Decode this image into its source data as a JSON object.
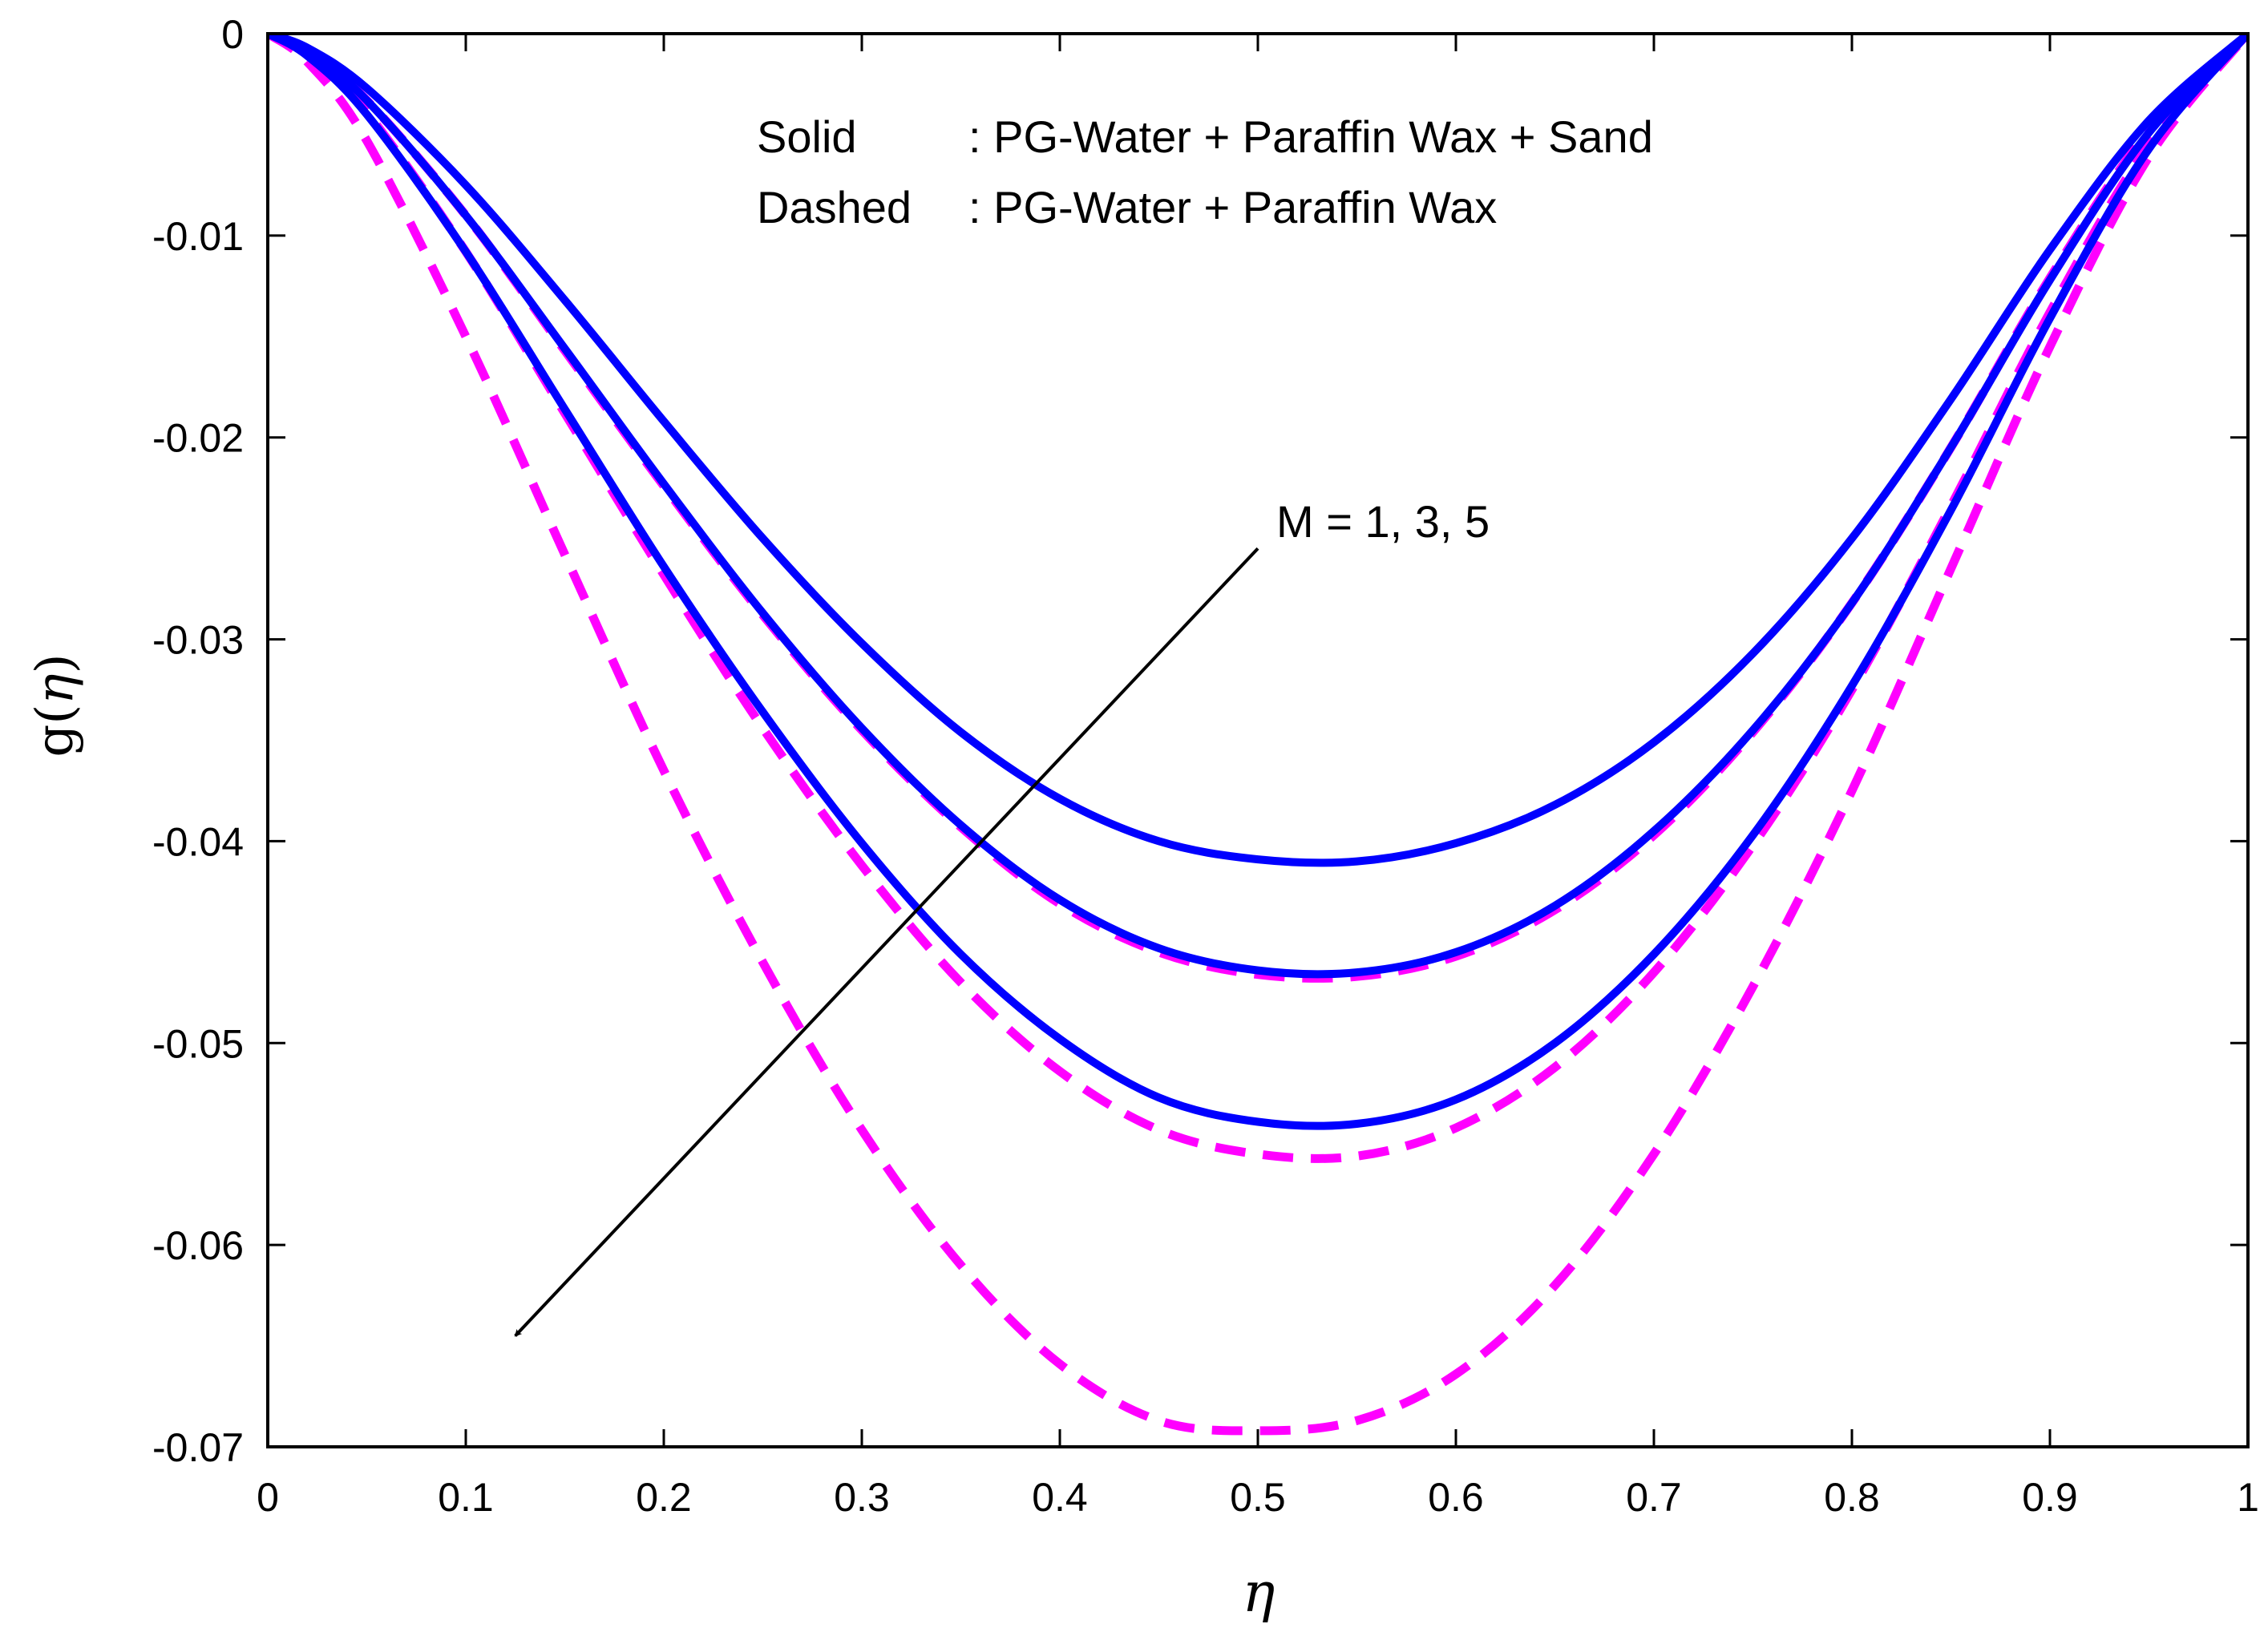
{
  "chart_data": {
    "type": "line",
    "title": "",
    "xlabel": "η",
    "ylabel_prefix": "g(",
    "ylabel_var": "η",
    "ylabel_suffix": ")",
    "xlim": [
      0,
      1
    ],
    "ylim": [
      -0.07,
      0
    ],
    "x_ticks": [
      0,
      0.1,
      0.2,
      0.3,
      0.4,
      0.5,
      0.6,
      0.7,
      0.8,
      0.9,
      1
    ],
    "x_tick_labels": [
      "0",
      "0.1",
      "0.2",
      "0.3",
      "0.4",
      "0.5",
      "0.6",
      "0.7",
      "0.8",
      "0.9",
      "1"
    ],
    "y_ticks": [
      0,
      -0.01,
      -0.02,
      -0.03,
      -0.04,
      -0.05,
      -0.06,
      -0.07
    ],
    "y_tick_labels": [
      "0",
      "-0.01",
      "-0.02",
      "-0.03",
      "-0.04",
      "-0.05",
      "-0.06",
      "-0.07"
    ],
    "grid": false,
    "legend_text": {
      "line1_key": "Solid",
      "line1_value": ": PG-Water + Paraffin Wax + Sand",
      "line2_key": "Dashed",
      "line2_value": ": PG-Water + Paraffin Wax"
    },
    "annotation": {
      "text": "M = 1, 3, 5",
      "arrow_start": [
        0.5,
        -0.0255
      ],
      "arrow_end": [
        0.125,
        -0.0645
      ]
    },
    "colors": {
      "solid": "#0000ff",
      "dashed": "#ff00ff",
      "axis": "#000000"
    },
    "series": [
      {
        "name": "Solid, M = 1",
        "style": "solid",
        "color": "#0000ff",
        "min": -0.041,
        "xmin": 0.55,
        "x": [
          0,
          0.02,
          0.05,
          0.1,
          0.15,
          0.2,
          0.25,
          0.3,
          0.35,
          0.4,
          0.45,
          0.5,
          0.55,
          0.6,
          0.65,
          0.7,
          0.75,
          0.8,
          0.85,
          0.9,
          0.95,
          1
        ],
        "values": [
          0,
          -0.0007,
          -0.0027,
          -0.0075,
          -0.0132,
          -0.0192,
          -0.025,
          -0.0302,
          -0.0346,
          -0.0379,
          -0.04,
          -0.0409,
          -0.041,
          -0.0401,
          -0.0382,
          -0.0351,
          -0.0307,
          -0.025,
          -0.0181,
          -0.0107,
          -0.0043,
          0
        ]
      },
      {
        "name": "Solid, M = 3",
        "style": "solid",
        "color": "#0000ff",
        "min": -0.0465,
        "xmin": 0.545,
        "x": [
          0,
          0.02,
          0.05,
          0.1,
          0.15,
          0.2,
          0.25,
          0.3,
          0.35,
          0.4,
          0.45,
          0.5,
          0.55,
          0.6,
          0.65,
          0.7,
          0.75,
          0.8,
          0.85,
          0.9,
          0.95,
          1
        ],
        "values": [
          0,
          -0.0009,
          -0.0033,
          -0.009,
          -0.0156,
          -0.0223,
          -0.0287,
          -0.0344,
          -0.0392,
          -0.0429,
          -0.0453,
          -0.0464,
          -0.0465,
          -0.0455,
          -0.0432,
          -0.0395,
          -0.0345,
          -0.0282,
          -0.0205,
          -0.0122,
          -0.0049,
          0
        ]
      },
      {
        "name": "Solid, M = 5",
        "style": "solid",
        "color": "#0000ff",
        "min": -0.054,
        "xmin": 0.54,
        "x": [
          0,
          0.02,
          0.05,
          0.1,
          0.15,
          0.2,
          0.25,
          0.3,
          0.35,
          0.4,
          0.45,
          0.5,
          0.55,
          0.6,
          0.65,
          0.7,
          0.75,
          0.8,
          0.85,
          0.9,
          0.95,
          1
        ],
        "values": [
          0,
          -0.0011,
          -0.004,
          -0.0108,
          -0.0186,
          -0.0264,
          -0.0336,
          -0.0401,
          -0.0456,
          -0.0498,
          -0.0527,
          -0.0539,
          -0.054,
          -0.0528,
          -0.05,
          -0.0456,
          -0.0397,
          -0.0323,
          -0.0236,
          -0.0141,
          -0.0057,
          0
        ]
      },
      {
        "name": "Dashed, M = 1",
        "style": "dashed",
        "color": "#ff00ff",
        "min": -0.0467,
        "xmin": 0.545,
        "x": [
          0,
          0.02,
          0.05,
          0.1,
          0.15,
          0.2,
          0.25,
          0.3,
          0.35,
          0.4,
          0.45,
          0.5,
          0.55,
          0.6,
          0.65,
          0.7,
          0.75,
          0.8,
          0.85,
          0.9,
          0.95,
          1
        ],
        "values": [
          0,
          -0.0009,
          -0.0033,
          -0.009,
          -0.0157,
          -0.0224,
          -0.0288,
          -0.0345,
          -0.0393,
          -0.0431,
          -0.0455,
          -0.0466,
          -0.0467,
          -0.0457,
          -0.0434,
          -0.0397,
          -0.0346,
          -0.0282,
          -0.0205,
          -0.0121,
          -0.0048,
          0
        ]
      },
      {
        "name": "Dashed, M = 3",
        "style": "dashed",
        "color": "#ff00ff",
        "min": -0.0556,
        "xmin": 0.54,
        "x": [
          0,
          0.02,
          0.05,
          0.1,
          0.15,
          0.2,
          0.25,
          0.3,
          0.35,
          0.4,
          0.45,
          0.5,
          0.55,
          0.6,
          0.65,
          0.7,
          0.75,
          0.8,
          0.85,
          0.9,
          0.95,
          1
        ],
        "values": [
          0,
          -0.001,
          -0.0039,
          -0.0108,
          -0.0188,
          -0.0268,
          -0.0344,
          -0.0412,
          -0.047,
          -0.0514,
          -0.0543,
          -0.0555,
          -0.0556,
          -0.0542,
          -0.0512,
          -0.0465,
          -0.0402,
          -0.0325,
          -0.0234,
          -0.0138,
          -0.0055,
          0
        ]
      },
      {
        "name": "Dashed, M = 5",
        "style": "dashed",
        "color": "#ff00ff",
        "min": -0.0692,
        "xmin": 0.53,
        "x": [
          0,
          0.02,
          0.05,
          0.1,
          0.15,
          0.2,
          0.25,
          0.3,
          0.35,
          0.4,
          0.45,
          0.5,
          0.55,
          0.6,
          0.65,
          0.7,
          0.75,
          0.8,
          0.85,
          0.9,
          0.95,
          1
        ],
        "values": [
          0,
          -0.0014,
          -0.0053,
          -0.015,
          -0.0258,
          -0.0365,
          -0.046,
          -0.0543,
          -0.061,
          -0.0659,
          -0.0687,
          -0.0692,
          -0.0687,
          -0.0664,
          -0.062,
          -0.0555,
          -0.0472,
          -0.0375,
          -0.0265,
          -0.0155,
          -0.0061,
          0
        ]
      }
    ]
  }
}
